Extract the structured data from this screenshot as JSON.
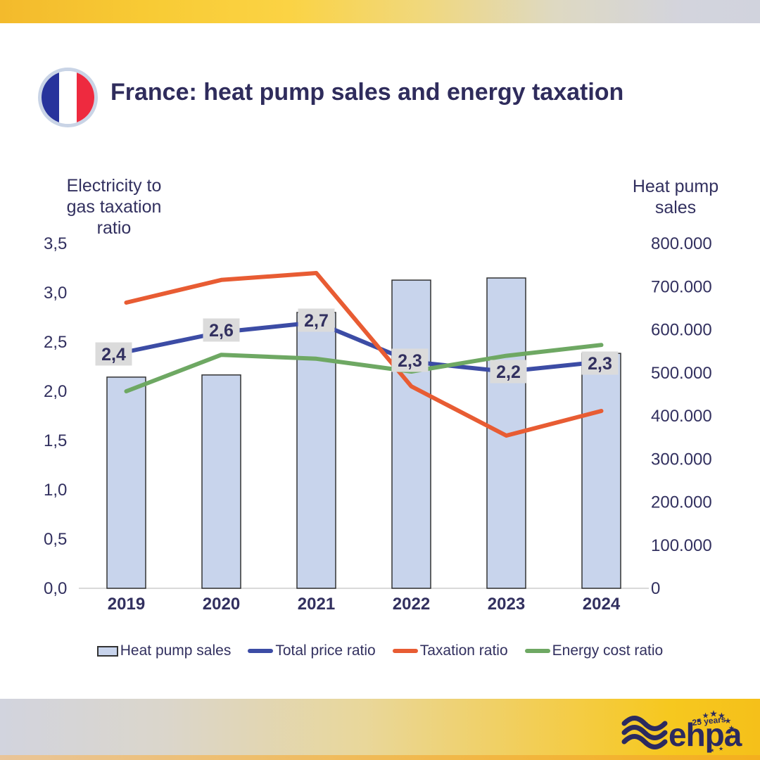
{
  "header": {
    "title": "France: heat pump sales and energy taxation",
    "flag_icon": "france-flag"
  },
  "chart_data": {
    "type": "combo-bar-line",
    "categories": [
      "2019",
      "2020",
      "2021",
      "2022",
      "2023",
      "2024"
    ],
    "left_axis": {
      "title": "Electricity to gas taxation ratio",
      "title_lines": [
        "Electricity to",
        "gas taxation",
        "ratio"
      ],
      "min": 0,
      "max": 3.5,
      "tick_step": 0.5,
      "tick_labels": [
        "3,5",
        "3,0",
        "2,5",
        "2,0",
        "1,5",
        "1,0",
        "0,5",
        "0,0"
      ]
    },
    "right_axis": {
      "title": "Heat pump sales",
      "title_lines": [
        "Heat pump",
        "sales"
      ],
      "min": 0,
      "max": 800000,
      "tick_step": 100000,
      "tick_labels": [
        "800.000",
        "700.000",
        "600.000",
        "500.000",
        "400.000",
        "300.000",
        "200.000",
        "100.000",
        "0"
      ]
    },
    "series": [
      {
        "name": "Heat pump sales",
        "type": "bar",
        "axis": "right",
        "color": "#C8D4EC",
        "border_color": "#333333",
        "values": [
          490000,
          495000,
          640000,
          715000,
          720000,
          545000
        ]
      },
      {
        "name": "Total price ratio",
        "type": "line",
        "axis": "left",
        "color": "#3C4CA5",
        "values": [
          2.4,
          2.6,
          2.7,
          2.3,
          2.2,
          2.3
        ],
        "point_labels": [
          "2,4",
          "2,6",
          "2,7",
          "2,3",
          "2,2",
          "2,3"
        ]
      },
      {
        "name": "Taxation ratio",
        "type": "line",
        "axis": "left",
        "color": "#E85C33",
        "values": [
          2.9,
          3.13,
          3.2,
          2.05,
          1.55,
          1.8
        ]
      },
      {
        "name": "Energy cost ratio",
        "type": "line",
        "axis": "left",
        "color": "#6EA863",
        "values": [
          2.0,
          2.37,
          2.33,
          2.2,
          2.36,
          2.47
        ]
      }
    ],
    "point_label_style": {
      "background": "#DBDBDB",
      "text_color": "#32305F"
    },
    "grid": "off",
    "legend_position": "bottom"
  },
  "footer": {
    "logo_text": "ehpa",
    "logo_tagline": "25 years"
  }
}
